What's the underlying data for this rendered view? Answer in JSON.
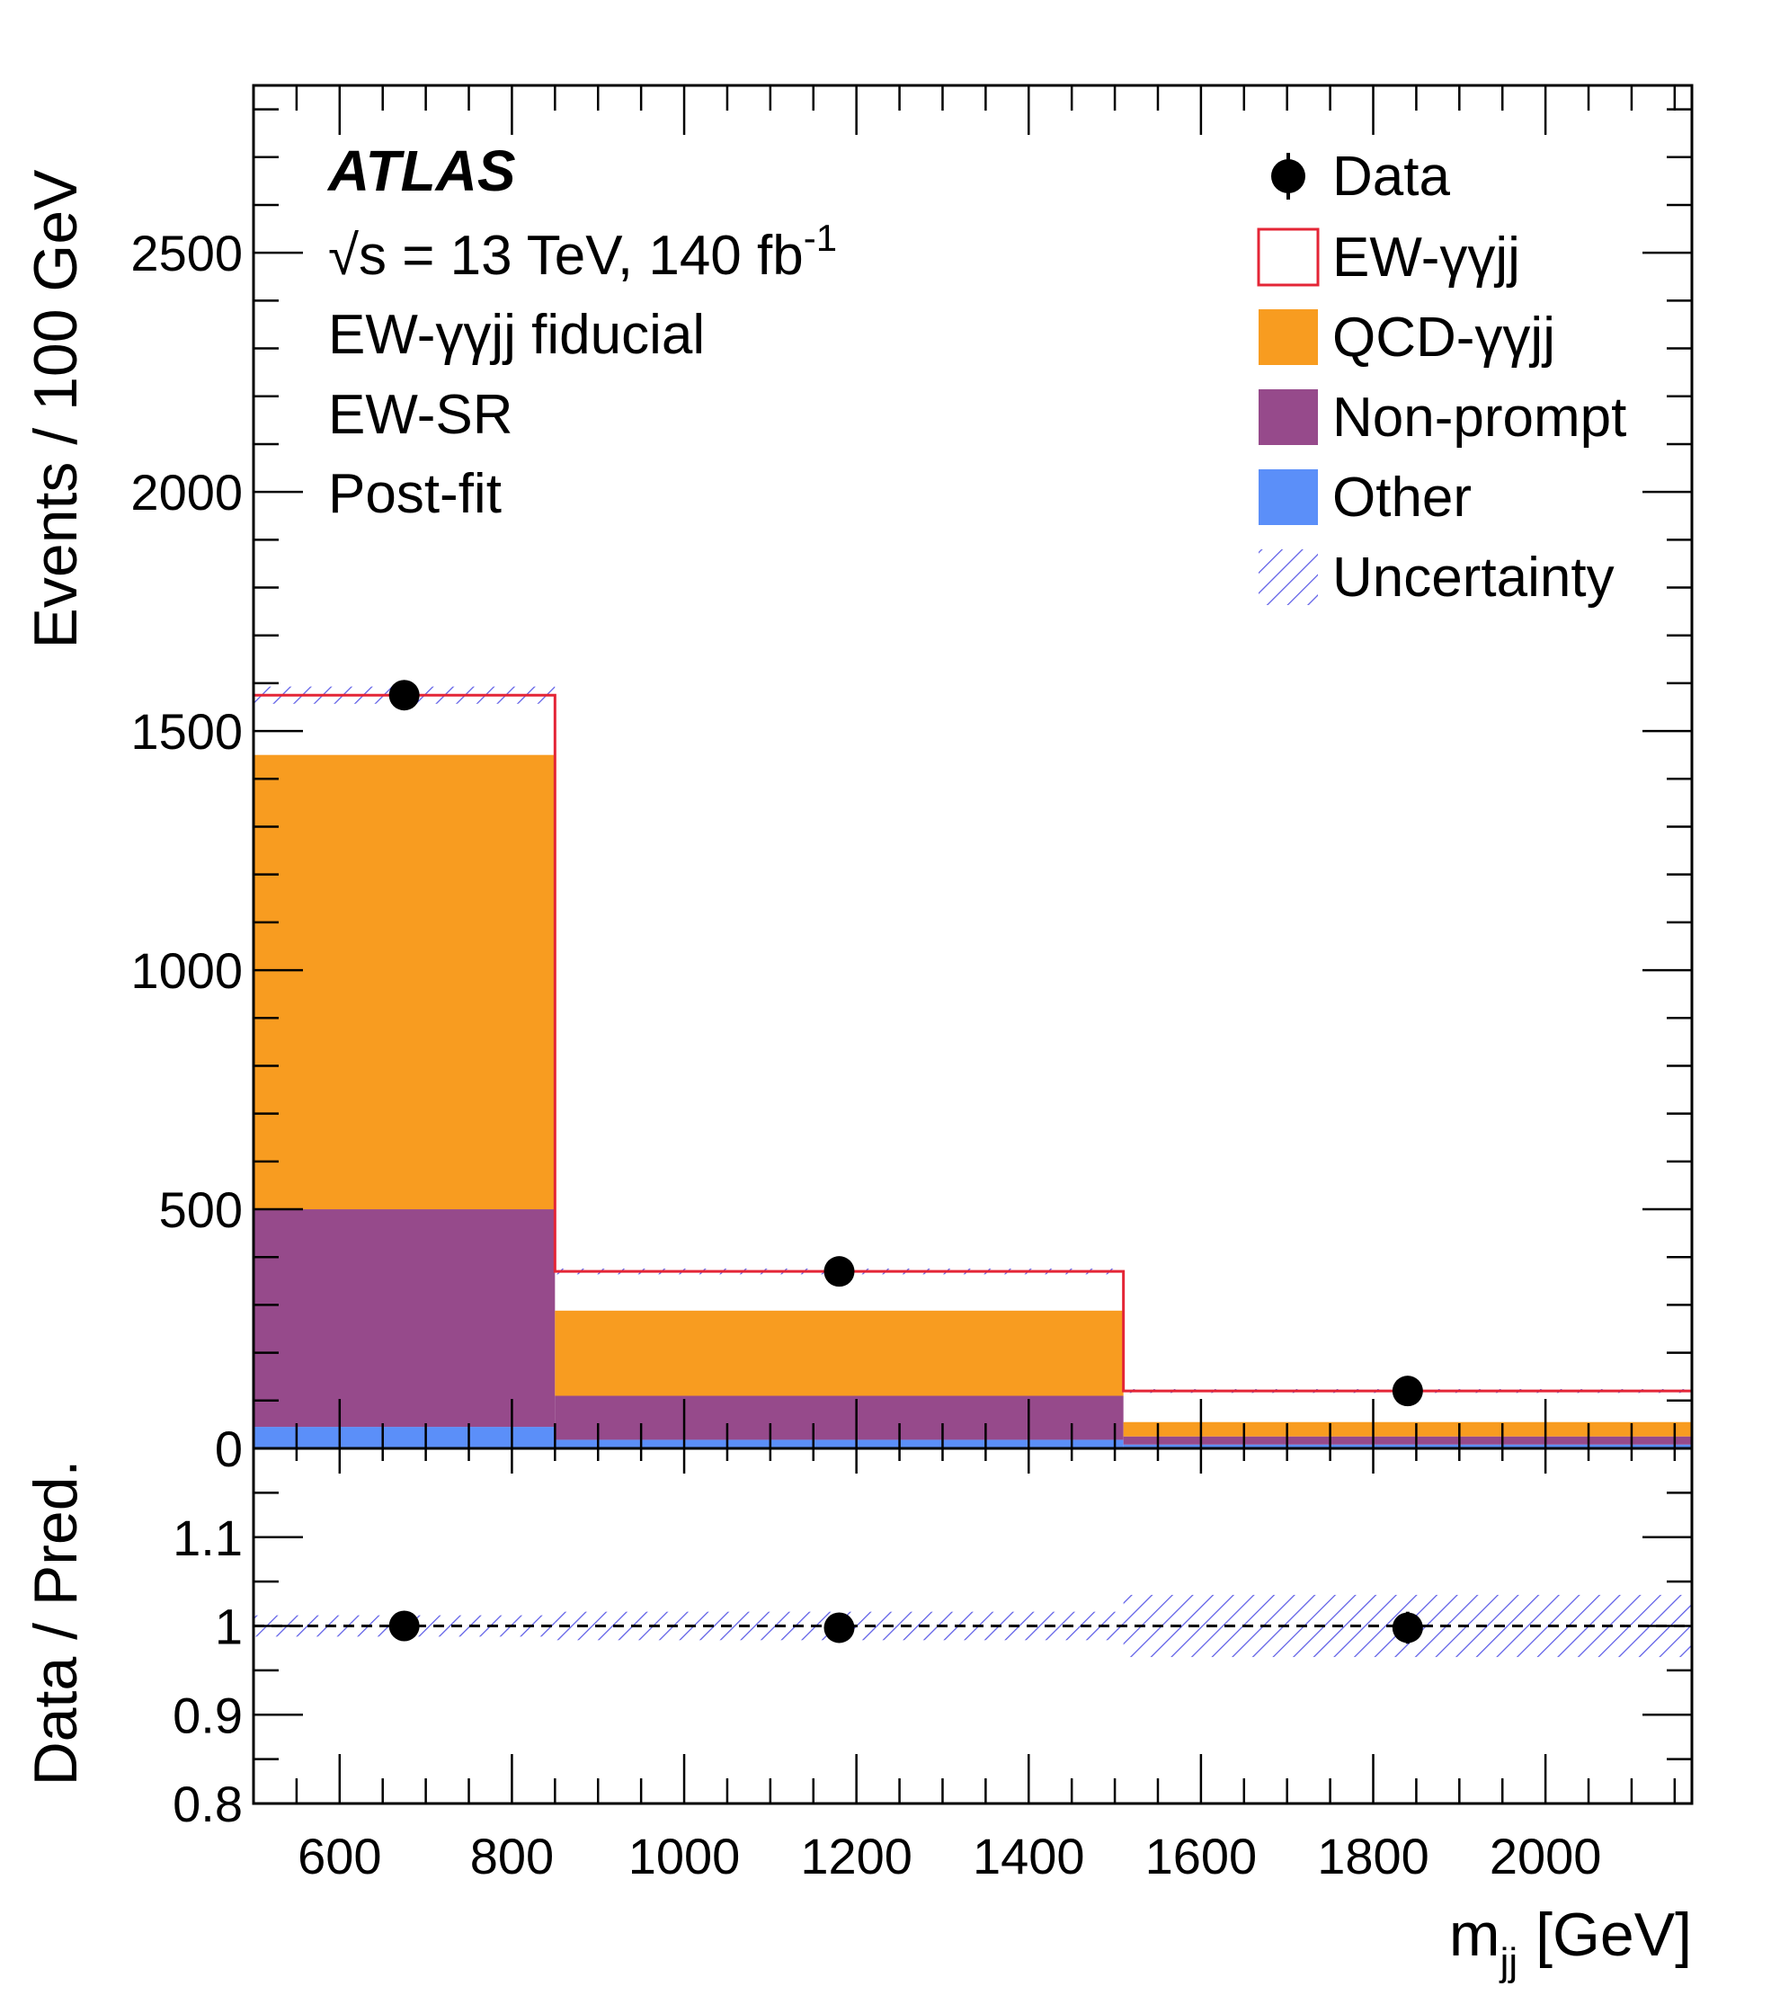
{
  "chart_data": [
    {
      "panel": "main",
      "type": "bar",
      "stacked": true,
      "xlabel_main": "m",
      "xlabel_sub": "jj",
      "xlabel_unit": "[GeV]",
      "ylabel": "Events / 100 GeV",
      "xlim": [
        500,
        2170
      ],
      "ylim": [
        0,
        2850
      ],
      "y_ticks": [
        "0",
        "500",
        "1000",
        "1500",
        "2000",
        "2500"
      ],
      "bins": [
        [
          500,
          850
        ],
        [
          850,
          1510
        ],
        [
          1510,
          2170
        ]
      ],
      "series": [
        {
          "name": "Other",
          "color": "#5b8ff9",
          "values": [
            45,
            18,
            8
          ]
        },
        {
          "name": "Non-prompt",
          "color": "#964a8b",
          "values": [
            455,
            92,
            17
          ]
        },
        {
          "name": "QCD-γγjj",
          "color": "#f89c20",
          "values": [
            950,
            178,
            30
          ]
        },
        {
          "name": "EW-γγjj",
          "color": "#e42536",
          "values": [
            125,
            82,
            65
          ]
        }
      ],
      "total": [
        1575,
        370,
        120
      ],
      "uncertainty": [
        18,
        6,
        4
      ],
      "data_points": {
        "name": "Data",
        "x": [
          675,
          1180,
          1840
        ],
        "y": [
          1575,
          370,
          120
        ]
      },
      "legend": {
        "placement": "top-right",
        "entries": [
          "Data",
          "EW-γγjj",
          "QCD-γγjj",
          "Non-prompt",
          "Other",
          "Uncertainty"
        ]
      },
      "annotations": {
        "experiment": "ATLAS",
        "energy": "√s = 13 TeV, 140 fb",
        "lumi_exp": "-1",
        "line3": "EW-γγjj fiducial",
        "line4": "EW-SR",
        "line5": "Post-fit"
      }
    },
    {
      "panel": "ratio",
      "type": "scatter",
      "ylabel": "Data / Pred.",
      "ylim": [
        0.8,
        1.2
      ],
      "y_ticks": [
        "0.8",
        "0.9",
        "1",
        "1.1"
      ],
      "x_ticks": [
        "600",
        "800",
        "1000",
        "1200",
        "1400",
        "1600",
        "1800",
        "2000"
      ],
      "reference_line": 1.0,
      "x": [
        675,
        1180,
        1840
      ],
      "y": [
        1.0,
        0.998,
        0.998
      ],
      "yerr": [
        0.004,
        0.006,
        0.018
      ],
      "uncertainty_band": [
        0.012,
        0.016,
        0.035
      ]
    }
  ]
}
